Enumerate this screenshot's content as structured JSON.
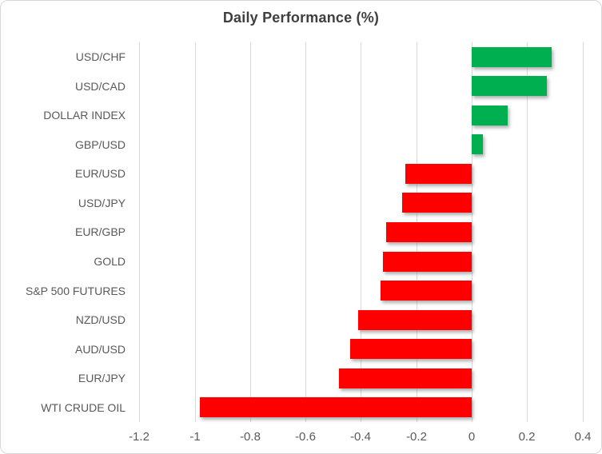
{
  "chart_title": "Daily Performance (%)",
  "chart_data": {
    "type": "bar",
    "orientation": "horizontal",
    "title": "Daily Performance (%)",
    "xlabel": "",
    "ylabel": "",
    "categories": [
      "USD/CHF",
      "USD/CAD",
      "DOLLAR INDEX",
      "GBP/USD",
      "EUR/USD",
      "USD/JPY",
      "EUR/GBP",
      "GOLD",
      "S&P 500 FUTURES",
      "NZD/USD",
      "AUD/USD",
      "EUR/JPY",
      "WTI CRUDE OIL"
    ],
    "values": [
      0.29,
      0.27,
      0.13,
      0.04,
      -0.24,
      -0.25,
      -0.31,
      -0.32,
      -0.33,
      -0.41,
      -0.44,
      -0.48,
      -0.98
    ],
    "xlim": [
      -1.2,
      0.4
    ],
    "x_ticks": [
      -1.2,
      -1.0,
      -0.8,
      -0.6,
      -0.4,
      -0.2,
      0,
      0.2,
      0.4
    ],
    "x_tick_labels": [
      "-1.2",
      "-1",
      "-0.8",
      "-0.6",
      "-0.4",
      "-0.2",
      "0",
      "0.2",
      "0.4"
    ],
    "grid": true,
    "legend_position": "none",
    "colors": {
      "positive": "#00b050",
      "negative": "#ff0000",
      "gridline": "#d9d9d9",
      "title_text": "#3f3f3f",
      "label_text": "#595959"
    }
  }
}
